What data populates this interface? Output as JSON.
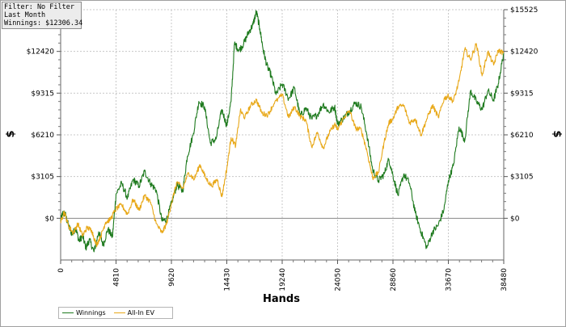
{
  "info_box": {
    "filter": "Filter: No Filter",
    "period": "Last Month",
    "winnings": "Winnings: $12306.34"
  },
  "legend": {
    "winnings_label": "Winnings",
    "ev_label": "All-In EV"
  },
  "colors": {
    "winnings": "#1e7a1e",
    "ev": "#e8a818",
    "grid": "#c8c8c8",
    "zero_line": "#888888"
  },
  "chart_data": {
    "type": "line",
    "title": "",
    "xlabel": "Hands",
    "ylabel": "$",
    "xlim": [
      0,
      38480
    ],
    "ylim": [
      -3105,
      15525
    ],
    "x_ticks": [
      0,
      4810,
      9620,
      14430,
      19240,
      24050,
      28860,
      33670,
      38480
    ],
    "x_tick_labels": [
      "0",
      "4810",
      "9620",
      "14430",
      "19240",
      "24050",
      "28860",
      "33670",
      "38480"
    ],
    "y_ticks": [
      0,
      3105,
      6210,
      9315,
      12420,
      15525
    ],
    "y_tick_labels": [
      "$0",
      "$3105",
      "$6210",
      "$9315",
      "$12420",
      "$15525"
    ],
    "grid": true,
    "legend_position": "bottom-left",
    "series": [
      {
        "name": "Winnings",
        "color": "#1e7a1e",
        "x": [
          0,
          200,
          400,
          700,
          1000,
          1300,
          1600,
          1900,
          2200,
          2500,
          2900,
          3300,
          3700,
          4100,
          4500,
          4810,
          5300,
          5800,
          6300,
          6800,
          7300,
          7800,
          8300,
          8800,
          9200,
          9620,
          10100,
          10600,
          11000,
          11500,
          12000,
          12500,
          13000,
          13500,
          14000,
          14430,
          14800,
          15100,
          15500,
          15900,
          16300,
          16700,
          17000,
          17300,
          17600,
          17900,
          18300,
          18700,
          19240,
          19800,
          20300,
          20800,
          21300,
          21800,
          22300,
          22800,
          23300,
          23800,
          24050,
          24600,
          25100,
          25600,
          26100,
          26600,
          27100,
          27600,
          28100,
          28500,
          28860,
          29300,
          29800,
          30300,
          30800,
          31300,
          31800,
          32300,
          32800,
          33300,
          33670,
          34100,
          34600,
          35100,
          35600,
          36100,
          36600,
          37100,
          37600,
          38000,
          38480
        ],
        "values": [
          -200,
          400,
          300,
          -600,
          -1200,
          -700,
          -1700,
          -1300,
          -2200,
          -1600,
          -2500,
          -1000,
          -2000,
          -800,
          -1400,
          1800,
          2600,
          1500,
          2900,
          2400,
          3500,
          2600,
          2100,
          -200,
          -100,
          1100,
          2500,
          2000,
          4600,
          6200,
          8700,
          8300,
          5600,
          5900,
          8100,
          6900,
          8700,
          13000,
          12500,
          13000,
          13800,
          14400,
          15400,
          14100,
          12500,
          11400,
          10600,
          9200,
          10000,
          8900,
          9700,
          7600,
          8200,
          7400,
          7700,
          8500,
          7900,
          8300,
          7000,
          7500,
          8000,
          8600,
          8300,
          6200,
          3600,
          2800,
          3300,
          4400,
          3200,
          1700,
          3300,
          2600,
          400,
          -1000,
          -2200,
          -1000,
          -500,
          700,
          2800,
          3900,
          6800,
          5800,
          9500,
          8700,
          8100,
          9500,
          8800,
          10000,
          12300
        ]
      },
      {
        "name": "All-In EV",
        "color": "#e8a818",
        "x": [
          0,
          300,
          700,
          1100,
          1500,
          1900,
          2300,
          2700,
          3100,
          3500,
          3900,
          4300,
          4810,
          5300,
          5800,
          6300,
          6800,
          7300,
          7800,
          8300,
          8800,
          9200,
          9620,
          10100,
          10600,
          11100,
          11600,
          12100,
          12600,
          13100,
          13600,
          14000,
          14430,
          14800,
          15200,
          15600,
          16000,
          16500,
          17000,
          17500,
          18000,
          18500,
          19240,
          19800,
          20300,
          20800,
          21300,
          21800,
          22300,
          22800,
          23300,
          23800,
          24050,
          24600,
          25100,
          25600,
          26100,
          26600,
          27100,
          27600,
          28100,
          28500,
          28860,
          29300,
          29800,
          30300,
          30800,
          31300,
          31800,
          32300,
          32800,
          33300,
          33670,
          34100,
          34600,
          35100,
          35600,
          36100,
          36600,
          37100,
          37600,
          38000,
          38480
        ],
        "values": [
          -300,
          500,
          -600,
          -1100,
          -400,
          -1300,
          -700,
          -900,
          -2000,
          -1300,
          -300,
          -100,
          700,
          1000,
          300,
          1400,
          600,
          1700,
          1200,
          -400,
          -1100,
          -400,
          1100,
          2700,
          2200,
          3400,
          2900,
          4000,
          3000,
          2400,
          2900,
          1600,
          3700,
          6000,
          5400,
          8000,
          7500,
          8400,
          8800,
          7800,
          7700,
          8500,
          9200,
          7500,
          8300,
          7600,
          7300,
          5300,
          6400,
          5200,
          6300,
          7000,
          6600,
          7500,
          8000,
          6700,
          6600,
          5000,
          3000,
          3400,
          5700,
          7100,
          7400,
          8300,
          8400,
          7100,
          7400,
          6200,
          7400,
          8400,
          7500,
          8900,
          9100,
          8700,
          10200,
          12600,
          11800,
          13000,
          10600,
          12400,
          11400,
          12500,
          12300
        ]
      }
    ]
  }
}
